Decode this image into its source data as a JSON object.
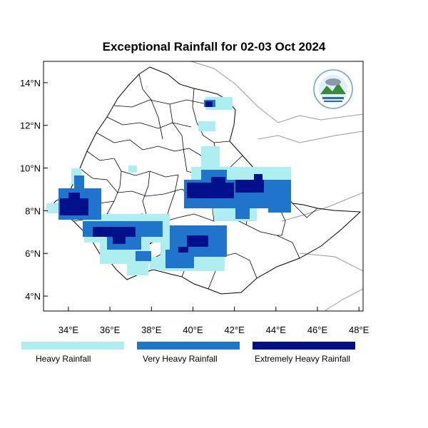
{
  "title": "Exceptional Rainfall for 02-03 Oct 2024",
  "map": {
    "lon_range": [
      32.8,
      48.2
    ],
    "lat_range": [
      3.3,
      15.0
    ],
    "lon_ticks": [
      {
        "value": 34,
        "label": "34°E"
      },
      {
        "value": 36,
        "label": "36°E"
      },
      {
        "value": 38,
        "label": "38°E"
      },
      {
        "value": 40,
        "label": "40°E"
      },
      {
        "value": 42,
        "label": "42°E"
      },
      {
        "value": 44,
        "label": "44°E"
      },
      {
        "value": 46,
        "label": "46°E"
      },
      {
        "value": 48,
        "label": "48°E"
      }
    ],
    "lat_ticks": [
      {
        "value": 4,
        "label": "4°N"
      },
      {
        "value": 6,
        "label": "6°N"
      },
      {
        "value": 8,
        "label": "8°N"
      },
      {
        "value": 10,
        "label": "10°N"
      },
      {
        "value": 12,
        "label": "12°N"
      },
      {
        "value": 14,
        "label": "14°N"
      }
    ],
    "colors": {
      "heavy": "#aeeef0",
      "very_heavy": "#1f74cc",
      "extremely_heavy": "#000f8a",
      "neighbor_border": "#9a9a9a",
      "country_border": "#000000"
    }
  },
  "legend": [
    {
      "label": "Heavy Rainfall",
      "color": "#aeeef0"
    },
    {
      "label": "Very Heavy Rainfall",
      "color": "#1f74cc"
    },
    {
      "label": "Extremely Heavy Rainfall",
      "color": "#000f8a"
    }
  ],
  "logo": {
    "icon": "ethiopian-meteorology-institute-logo"
  }
}
